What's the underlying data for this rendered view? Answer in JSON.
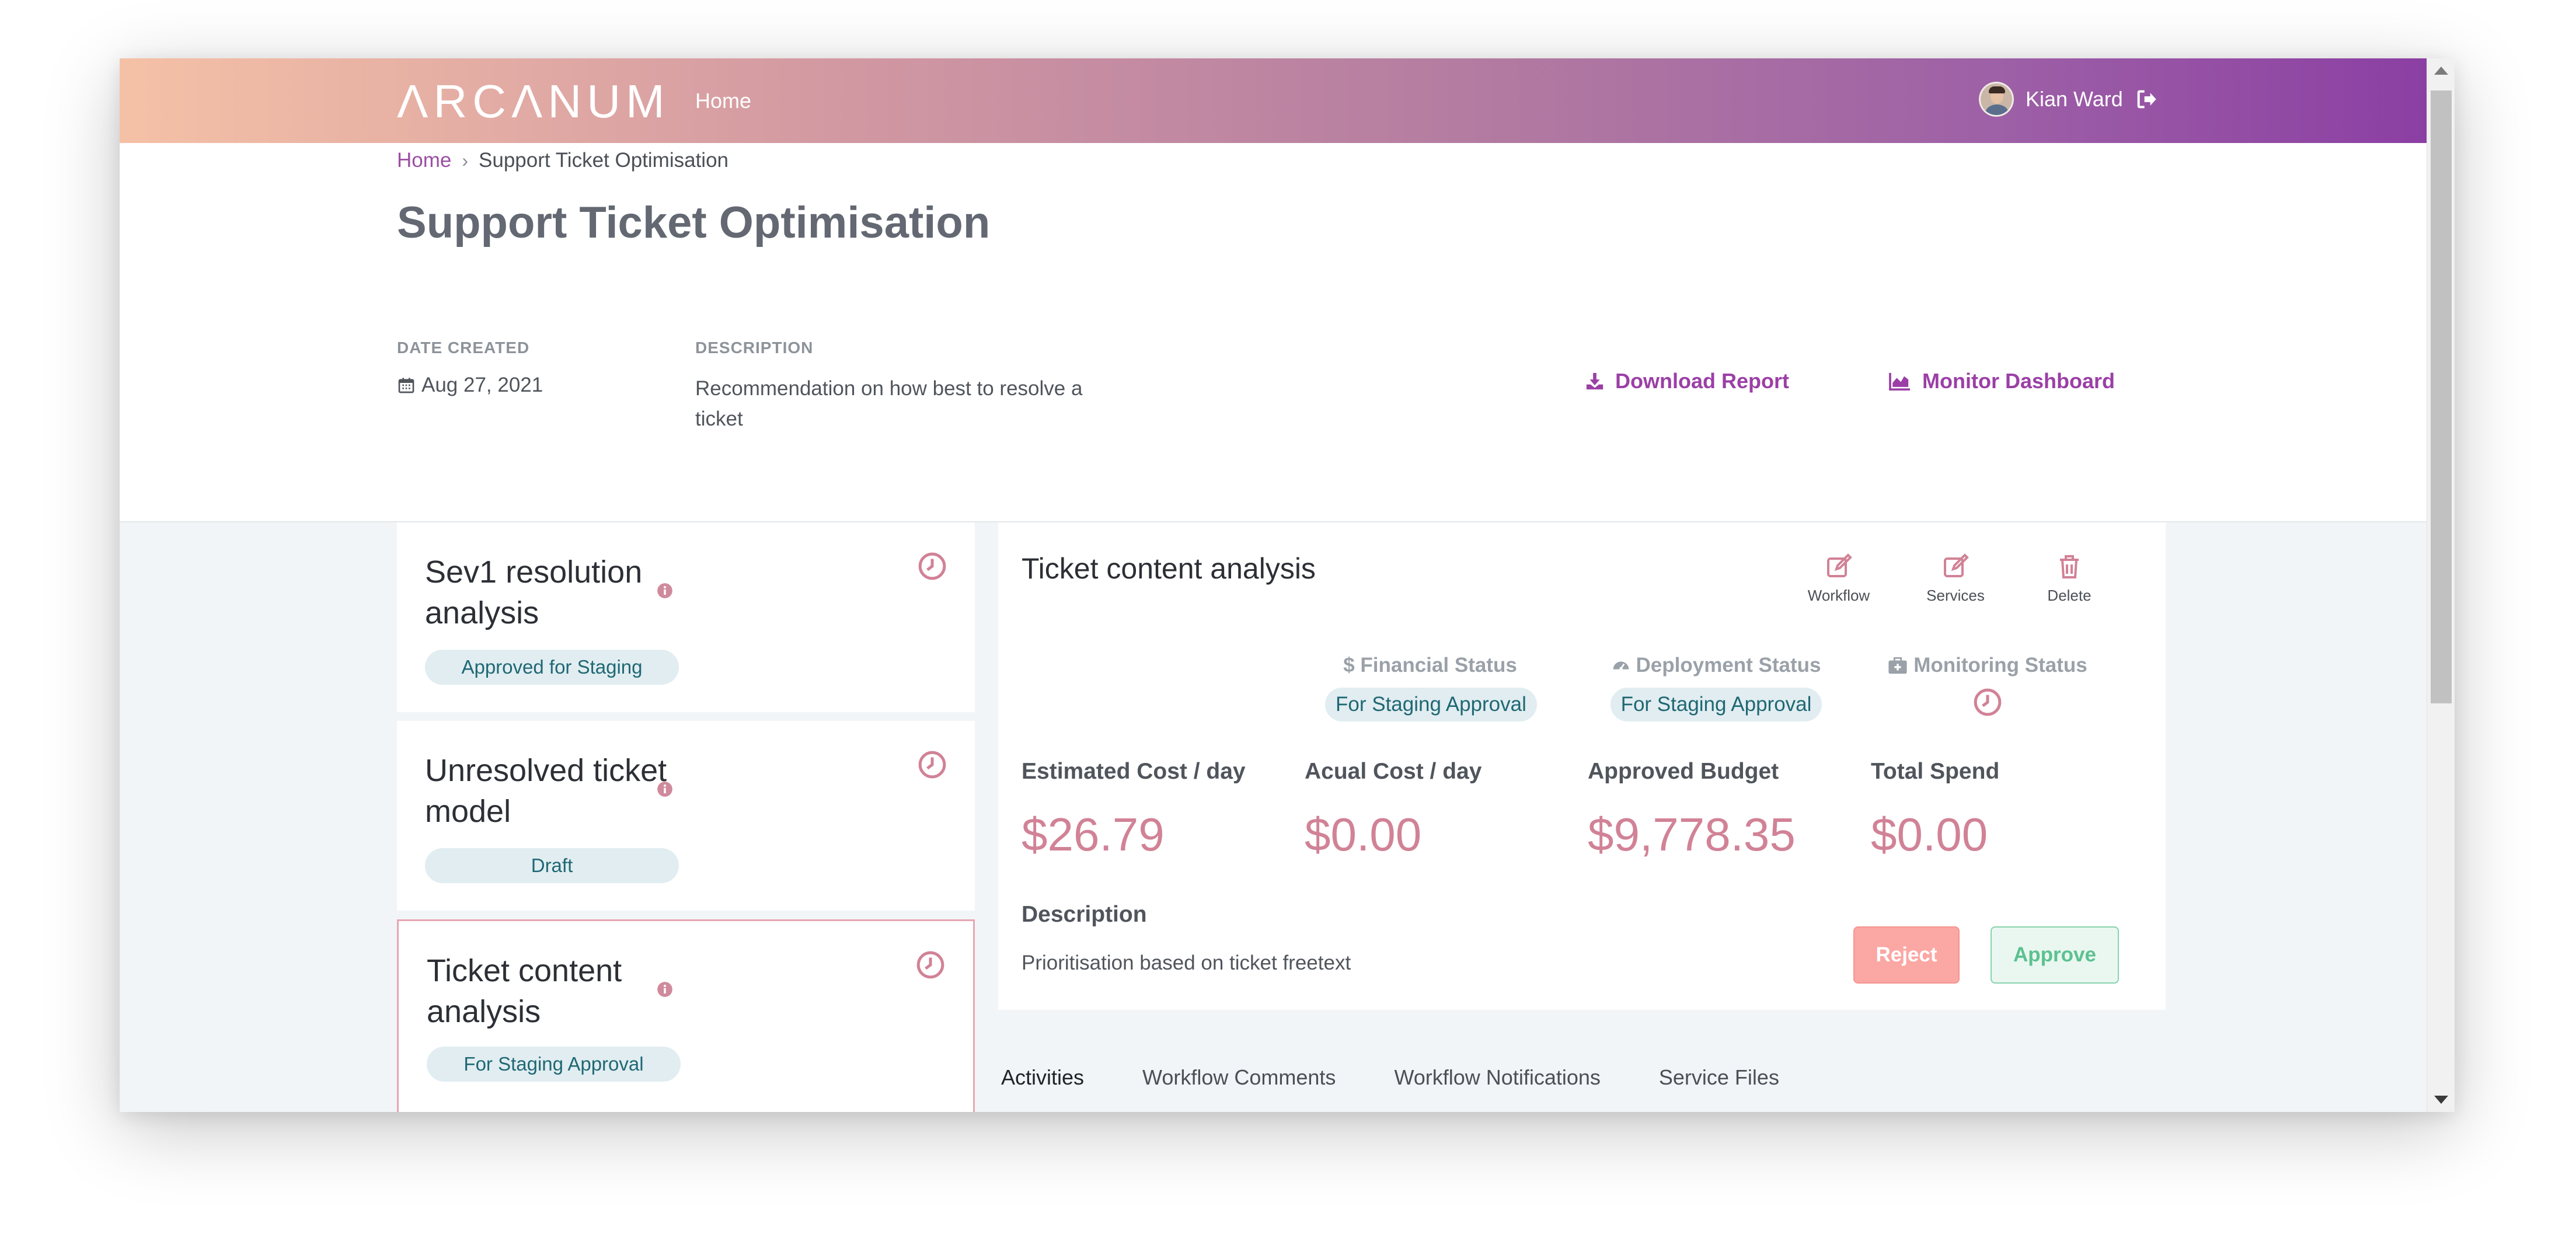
{
  "topbar": {
    "logo": "ΛRCΛNUM",
    "nav_home": "Home",
    "user_name": "Kian Ward"
  },
  "breadcrumb": {
    "home": "Home",
    "separator": "›",
    "current": "Support Ticket Optimisation"
  },
  "page": {
    "title": "Support Ticket Optimisation",
    "date_created_label": "DATE CREATED",
    "date_created_value": "Aug 27, 2021",
    "description_label": "DESCRIPTION",
    "description_value": "Recommendation on how best to resolve a ticket",
    "download_report": "Download Report",
    "monitor_dashboard": "Monitor Dashboard"
  },
  "models": [
    {
      "title": "Sev1 resolution analysis",
      "status": "Approved for Staging"
    },
    {
      "title": "Unresolved ticket model",
      "status": "Draft"
    },
    {
      "title": "Ticket content analysis",
      "status": "For Staging Approval"
    }
  ],
  "detail": {
    "title": "Ticket content analysis",
    "actions": {
      "workflow": "Workflow",
      "services": "Services",
      "delete": "Delete"
    },
    "financial_status_label": "$ Financial Status",
    "financial_status_value": "For Staging Approval",
    "deployment_status_label": "Deployment Status",
    "deployment_status_value": "For Staging Approval",
    "monitoring_status_label": "Monitoring Status",
    "costs": {
      "estimated_label": "Estimated Cost / day",
      "estimated_value": "$26.79",
      "actual_label": "Acual Cost / day",
      "actual_value": "$0.00",
      "budget_label": "Approved Budget",
      "budget_value": "$9,778.35",
      "total_label": "Total Spend",
      "total_value": "$0.00"
    },
    "description_heading": "Description",
    "description_text": "Prioritisation based on ticket freetext",
    "reject_label": "Reject",
    "approve_label": "Approve"
  },
  "tabs": [
    "Activities",
    "Workflow Comments",
    "Workflow Notifications",
    "Service Files"
  ],
  "colors": {
    "accent": "#9b3fa6",
    "cost_value": "#d18296",
    "badge_bg": "#e1edf1",
    "badge_text": "#1f6873",
    "reject": "#fba7a4",
    "approve": "#5cc190"
  }
}
